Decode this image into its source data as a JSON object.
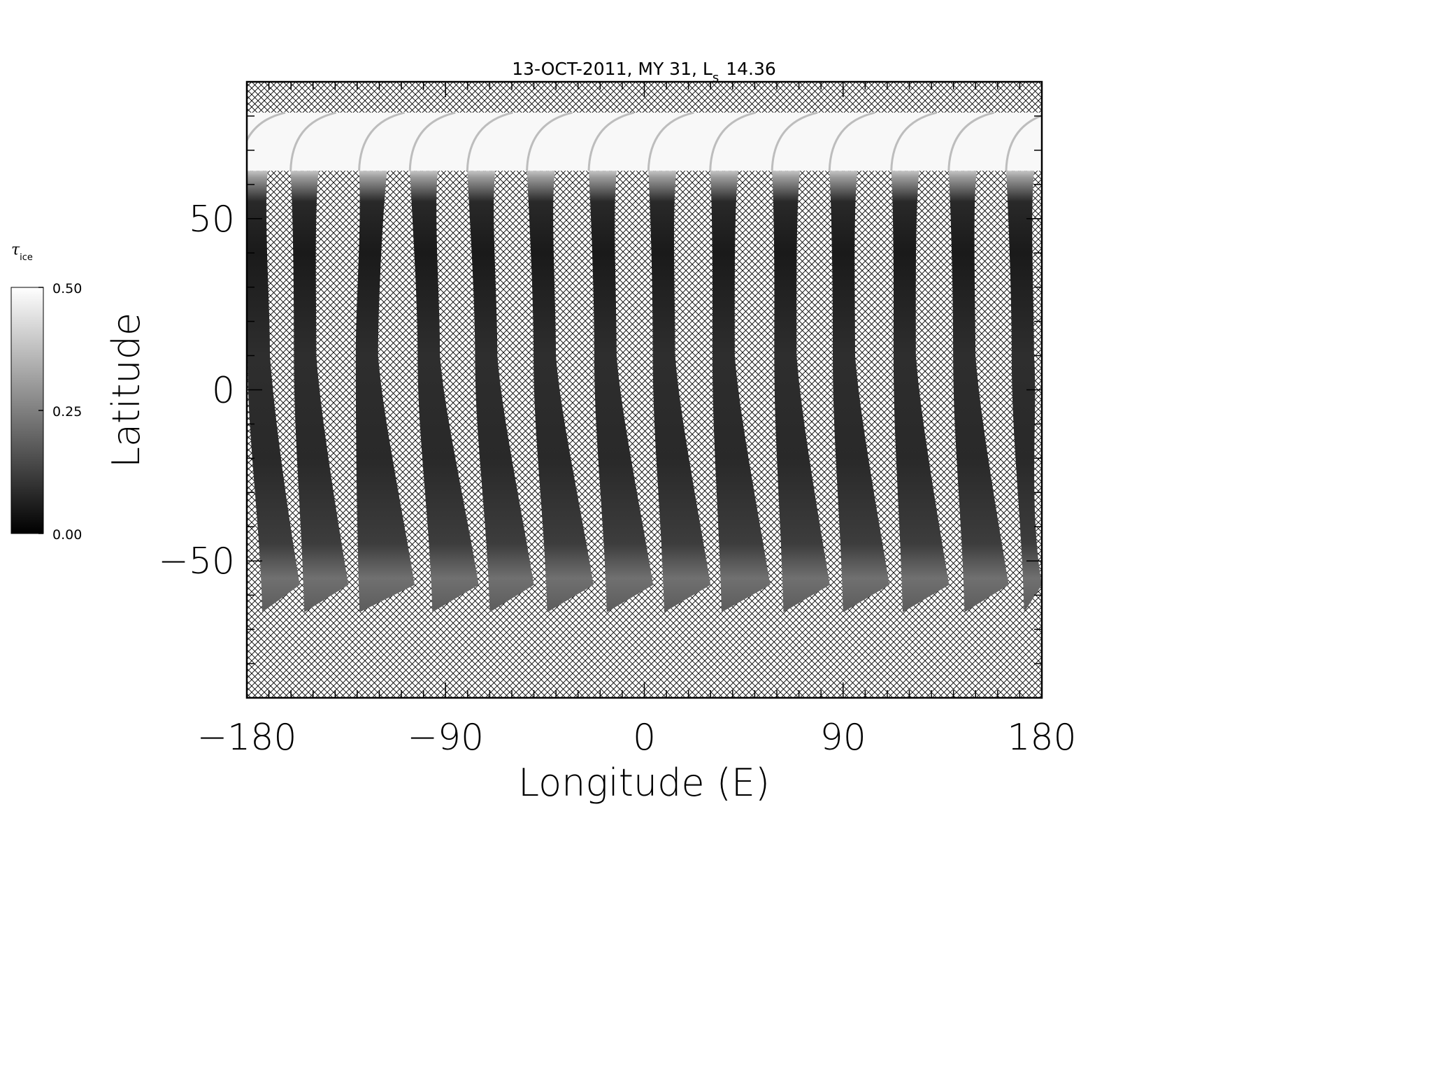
{
  "chart_data": {
    "type": "heatmap",
    "title": "13-OCT-2011, MY 31,  L",
    "title_subscript": "s",
    "title_value": "14.36",
    "xlabel": "Longitude (E)",
    "ylabel": "Latitude",
    "xlim": [
      -180,
      180
    ],
    "ylim": [
      -90,
      90
    ],
    "x_ticks": [
      -180,
      -90,
      0,
      90,
      180
    ],
    "x_tick_labels": [
      "−180",
      "−90",
      "0",
      "90",
      "180"
    ],
    "y_ticks": [
      -50,
      0,
      50
    ],
    "y_tick_labels": [
      "−50",
      "0",
      "50"
    ],
    "x_minor_step": 10,
    "y_minor_step": 10,
    "no_data_fill": "crosshatch",
    "data_lat_top": 81,
    "data_lat_bottom": -65,
    "colorbar": {
      "label": "τ",
      "label_subscript": "ice",
      "min": 0.0,
      "max": 0.5,
      "ticks": [
        0.0,
        0.25,
        0.5
      ],
      "tick_labels": [
        "0.00",
        "0.25",
        "0.50"
      ],
      "colormap": "grayscale"
    },
    "swaths": [
      {
        "top_lon": -180,
        "bottom_lon": -173,
        "bottom_lon_end": -156
      },
      {
        "top_lon": -157,
        "bottom_lon": -154,
        "bottom_lon_end": -134
      },
      {
        "top_lon": -126,
        "bottom_lon": -129,
        "bottom_lon_end": -104
      },
      {
        "top_lon": -103,
        "bottom_lon": -96,
        "bottom_lon_end": -75
      },
      {
        "top_lon": -77,
        "bottom_lon": -70,
        "bottom_lon_end": -50
      },
      {
        "top_lon": -50,
        "bottom_lon": -44,
        "bottom_lon_end": -23
      },
      {
        "top_lon": -22,
        "bottom_lon": -17,
        "bottom_lon_end": 4
      },
      {
        "top_lon": 5,
        "bottom_lon": 9,
        "bottom_lon_end": 30
      },
      {
        "top_lon": 33,
        "bottom_lon": 35,
        "bottom_lon_end": 57
      },
      {
        "top_lon": 61,
        "bottom_lon": 63,
        "bottom_lon_end": 84
      },
      {
        "top_lon": 87,
        "bottom_lon": 90,
        "bottom_lon_end": 111
      },
      {
        "top_lon": 115,
        "bottom_lon": 117,
        "bottom_lon_end": 138
      },
      {
        "top_lon": 141,
        "bottom_lon": 145,
        "bottom_lon_end": 165
      },
      {
        "top_lon": 167,
        "bottom_lon": 172,
        "bottom_lon_end": 180
      }
    ],
    "gray_profile": [
      {
        "lat": 81,
        "tau": 0.5
      },
      {
        "lat": 66,
        "tau": 0.47
      },
      {
        "lat": 62,
        "tau": 0.3
      },
      {
        "lat": 55,
        "tau": 0.08
      },
      {
        "lat": 40,
        "tau": 0.05
      },
      {
        "lat": 10,
        "tau": 0.09
      },
      {
        "lat": -20,
        "tau": 0.08
      },
      {
        "lat": -45,
        "tau": 0.12
      },
      {
        "lat": -55,
        "tau": 0.22
      },
      {
        "lat": -65,
        "tau": 0.18
      }
    ]
  }
}
